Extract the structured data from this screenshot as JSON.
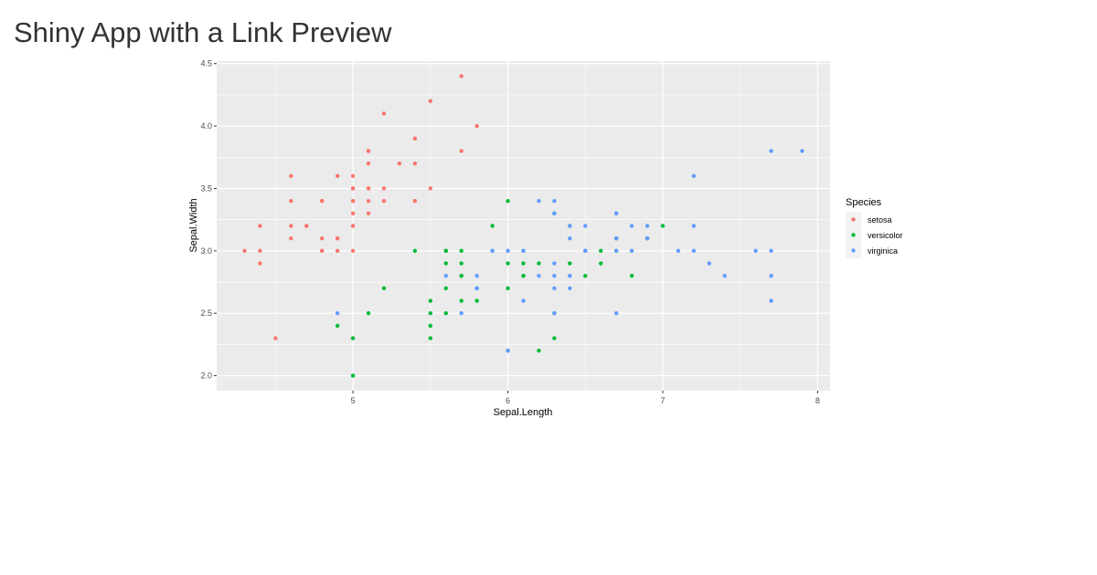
{
  "app": {
    "title": "Shiny App with a Link Preview"
  },
  "plot": {
    "xlabel": "Sepal.Length",
    "ylabel": "Sepal.Width",
    "legend_title": "Species"
  },
  "chart_data": {
    "type": "scatter",
    "title": "",
    "xlabel": "Sepal.Length",
    "ylabel": "Sepal.Width",
    "xlim": [
      4.12,
      8.08
    ],
    "ylim": [
      1.88,
      4.52
    ],
    "x_ticks": [
      5,
      6,
      7,
      8
    ],
    "y_ticks": [
      2.0,
      2.5,
      3.0,
      3.5,
      4.0,
      4.5
    ],
    "x_tick_labels": [
      "5",
      "6",
      "7",
      "8"
    ],
    "y_tick_labels": [
      "2.0",
      "2.5",
      "3.0",
      "3.5",
      "4.0",
      "4.5"
    ],
    "grid": true,
    "legend_position": "right",
    "legend_title": "Species",
    "panel_background": "#EBEBEB",
    "grid_color": "#FFFFFF",
    "series": [
      {
        "name": "setosa",
        "color": "#F8766D",
        "x": [
          5.1,
          4.9,
          4.7,
          4.6,
          5.0,
          5.4,
          4.6,
          5.0,
          4.4,
          4.9,
          5.4,
          4.8,
          4.8,
          4.3,
          5.8,
          5.7,
          5.4,
          5.1,
          5.7,
          5.1,
          5.4,
          5.1,
          4.6,
          5.1,
          4.8,
          5.0,
          5.0,
          5.2,
          5.2,
          4.7,
          4.8,
          5.4,
          5.2,
          5.5,
          4.9,
          5.0,
          5.5,
          4.9,
          4.4,
          5.1,
          5.0,
          4.5,
          4.4,
          5.0,
          5.1,
          4.8,
          5.1,
          4.6,
          5.3,
          5.0
        ],
        "y": [
          3.5,
          3.0,
          3.2,
          3.1,
          3.6,
          3.9,
          3.4,
          3.4,
          2.9,
          3.1,
          3.7,
          3.4,
          3.0,
          3.0,
          4.0,
          4.4,
          3.9,
          3.5,
          3.8,
          3.8,
          3.4,
          3.7,
          3.6,
          3.3,
          3.4,
          3.0,
          3.4,
          3.5,
          3.4,
          3.2,
          3.1,
          3.4,
          4.1,
          4.2,
          3.1,
          3.2,
          3.5,
          3.6,
          3.0,
          3.4,
          3.5,
          2.3,
          3.2,
          3.5,
          3.8,
          3.0,
          3.8,
          3.2,
          3.7,
          3.3
        ]
      },
      {
        "name": "versicolor",
        "color": "#00BA38",
        "x": [
          7.0,
          6.4,
          6.9,
          5.5,
          6.5,
          5.7,
          6.3,
          4.9,
          6.6,
          5.2,
          5.0,
          5.9,
          6.0,
          6.1,
          5.6,
          6.7,
          5.6,
          5.8,
          6.2,
          5.6,
          5.9,
          6.1,
          6.3,
          6.1,
          6.4,
          6.6,
          6.8,
          6.7,
          6.0,
          5.7,
          5.5,
          5.5,
          5.8,
          6.0,
          5.4,
          6.0,
          6.7,
          6.3,
          5.6,
          5.5,
          5.5,
          6.1,
          5.8,
          5.0,
          5.6,
          5.7,
          5.7,
          6.2,
          5.1,
          5.7
        ],
        "y": [
          3.2,
          3.2,
          3.1,
          2.3,
          2.8,
          2.8,
          3.3,
          2.4,
          2.9,
          2.7,
          2.0,
          3.0,
          2.2,
          2.9,
          2.9,
          3.1,
          3.0,
          2.7,
          2.2,
          2.5,
          3.2,
          2.8,
          2.5,
          2.8,
          2.9,
          3.0,
          2.8,
          3.0,
          2.9,
          2.6,
          2.4,
          2.4,
          2.7,
          2.7,
          3.0,
          3.4,
          3.1,
          2.3,
          3.0,
          2.5,
          2.6,
          3.0,
          2.6,
          2.3,
          2.7,
          3.0,
          2.9,
          2.9,
          2.5,
          2.8
        ]
      },
      {
        "name": "virginica",
        "color": "#619CFF",
        "x": [
          6.3,
          5.8,
          7.1,
          6.3,
          6.5,
          7.6,
          4.9,
          7.3,
          6.7,
          7.2,
          6.5,
          6.4,
          6.8,
          5.7,
          5.8,
          6.4,
          6.5,
          7.7,
          7.7,
          6.0,
          6.9,
          5.6,
          7.7,
          6.3,
          6.7,
          7.2,
          6.2,
          6.1,
          6.4,
          7.2,
          7.4,
          7.9,
          6.4,
          6.3,
          6.1,
          7.7,
          6.3,
          6.4,
          6.0,
          6.9,
          6.7,
          6.9,
          5.8,
          6.8,
          6.7,
          6.7,
          6.3,
          6.5,
          6.2,
          5.9
        ],
        "y": [
          3.3,
          2.7,
          3.0,
          2.9,
          3.0,
          3.0,
          2.5,
          2.9,
          2.5,
          3.6,
          3.2,
          2.7,
          3.0,
          2.5,
          2.8,
          3.2,
          3.0,
          3.8,
          2.6,
          2.2,
          3.2,
          2.8,
          2.8,
          2.7,
          3.3,
          3.2,
          2.8,
          3.0,
          2.8,
          3.0,
          2.8,
          3.8,
          2.8,
          2.8,
          2.6,
          3.0,
          3.4,
          3.1,
          3.0,
          3.1,
          3.1,
          3.1,
          2.7,
          3.2,
          3.3,
          3.0,
          2.5,
          3.0,
          3.4,
          3.0
        ]
      }
    ]
  }
}
